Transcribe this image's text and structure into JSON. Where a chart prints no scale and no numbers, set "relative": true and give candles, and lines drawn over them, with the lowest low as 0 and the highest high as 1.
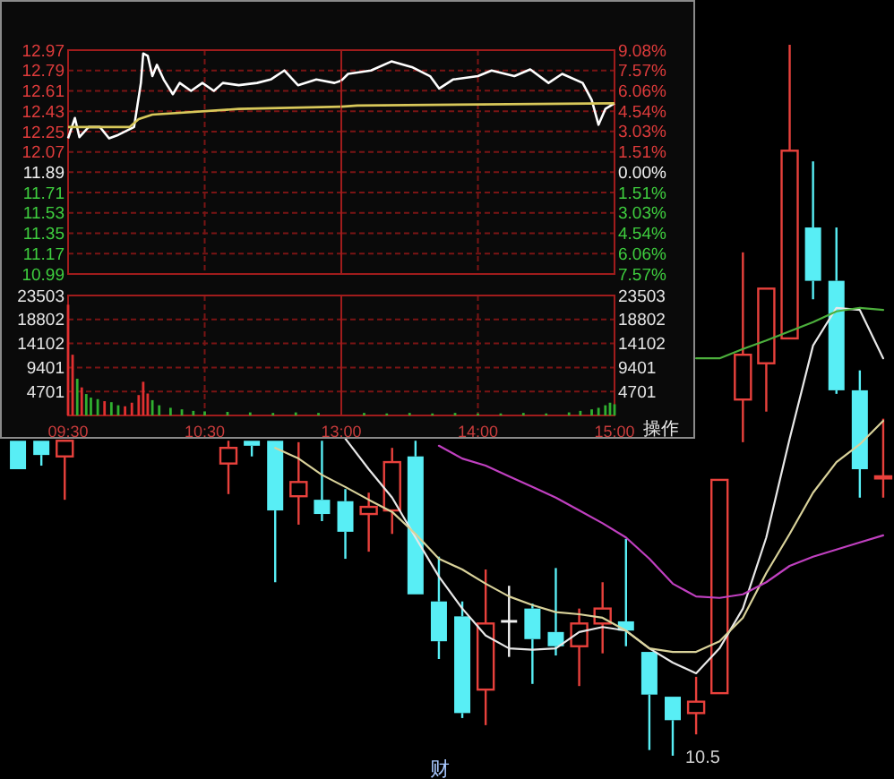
{
  "chart_data": [
    {
      "type": "candlestick",
      "relative": true,
      "categories": [
        null,
        null,
        null,
        null,
        null,
        null,
        null,
        null,
        null,
        null,
        null,
        null,
        null,
        null,
        null,
        null,
        null,
        null,
        null,
        null,
        null,
        null,
        null,
        null,
        null,
        null,
        null,
        null,
        null,
        null,
        null,
        null,
        null,
        null,
        null,
        null,
        null,
        null
      ],
      "ohlc": [
        [
          0.443,
          0.443,
          0.403,
          0.403
        ],
        [
          0.443,
          0.443,
          0.408,
          0.423
        ],
        [
          0.421,
          0.443,
          0.36,
          0.443
        ],
        null,
        null,
        null,
        null,
        null,
        null,
        [
          0.411,
          0.443,
          0.368,
          0.433
        ],
        [
          0.443,
          0.443,
          0.421,
          0.436
        ],
        [
          0.443,
          0.443,
          0.244,
          0.345
        ],
        [
          0.365,
          0.441,
          0.325,
          0.385
        ],
        [
          0.36,
          0.443,
          0.33,
          0.34
        ],
        [
          0.358,
          0.375,
          0.277,
          0.315
        ],
        [
          0.34,
          0.37,
          0.287,
          0.35
        ],
        [
          0.345,
          0.433,
          0.312,
          0.413
        ],
        [
          0.421,
          0.443,
          0.227,
          0.227
        ],
        [
          0.217,
          0.28,
          0.136,
          0.161
        ],
        [
          0.196,
          0.217,
          0.053,
          0.06
        ],
        [
          0.093,
          0.262,
          0.043,
          0.186
        ],
        [
          0.189,
          0.239,
          0.139,
          0.189
        ],
        [
          0.207,
          0.214,
          0.101,
          0.164
        ],
        [
          0.174,
          0.264,
          0.141,
          0.154
        ],
        [
          0.154,
          0.207,
          0.098,
          0.186
        ],
        [
          0.186,
          0.244,
          0.144,
          0.207
        ],
        [
          0.189,
          0.305,
          0.154,
          0.176
        ],
        [
          0.146,
          0.146,
          0.008,
          0.086
        ],
        [
          0.083,
          0.083,
          0,
          0.05
        ],
        [
          0.06,
          0.111,
          0.03,
          0.076
        ],
        [
          0.088,
          0.388,
          0.088,
          0.388
        ],
        [
          0.501,
          0.708,
          0.441,
          0.564
        ],
        [
          0.552,
          0.657,
          0.484,
          0.657
        ],
        [
          0.587,
          1,
          0.587,
          0.851
        ],
        [
          0.743,
          0.836,
          0.642,
          0.668
        ],
        [
          0.668,
          0.743,
          0.509,
          0.514
        ],
        [
          0.514,
          0.542,
          0.363,
          0.403
        ],
        [
          0.39,
          0.474,
          0.363,
          0.393
        ]
      ],
      "colors": [
        "#58eef5",
        "#58eef5",
        "#e8413c",
        null,
        null,
        null,
        null,
        null,
        null,
        "#e8413c",
        "#58eef5",
        "#58eef5",
        "#e8413c",
        "#58eef5",
        "#58eef5",
        "#e8413c",
        "#e8413c",
        "#58eef5",
        "#58eef5",
        "#58eef5",
        "#e8413c",
        "#f0f0f0",
        "#58eef5",
        "#58eef5",
        "#e8413c",
        "#e8413c",
        "#58eef5",
        "#58eef5",
        "#58eef5",
        "#e8413c",
        "#e8413c",
        "#e8413c",
        "#e8413c",
        "#e8413c",
        "#58eef5",
        "#58eef5",
        "#58eef5",
        "#e8413c"
      ],
      "series": [
        {
          "type": "line",
          "color": "#e8e8e8",
          "values": [
            null,
            null,
            null,
            null,
            null,
            null,
            null,
            null,
            null,
            null,
            null,
            null,
            null,
            null,
            0.446,
            0.403,
            0.363,
            0.307,
            0.252,
            0.207,
            0.169,
            0.151,
            0.149,
            0.151,
            0.174,
            0.181,
            0.176,
            0.151,
            0.131,
            0.116,
            0.151,
            0.207,
            0.307,
            0.446,
            0.577,
            0.63,
            0.627,
            0.559
          ]
        },
        {
          "type": "line",
          "color": "#d9d29a",
          "values": [
            null,
            null,
            null,
            null,
            null,
            null,
            null,
            null,
            null,
            null,
            null,
            0.433,
            0.418,
            0.395,
            0.378,
            0.36,
            0.343,
            0.312,
            0.277,
            0.262,
            0.242,
            0.224,
            0.212,
            0.202,
            0.199,
            0.194,
            0.176,
            0.151,
            0.146,
            0.146,
            0.161,
            0.194,
            0.257,
            0.312,
            0.37,
            0.413,
            0.438,
            0.471
          ]
        },
        {
          "type": "line",
          "color": "#c040c0",
          "values": [
            null,
            null,
            null,
            null,
            null,
            null,
            null,
            null,
            null,
            null,
            null,
            null,
            null,
            null,
            null,
            null,
            null,
            null,
            0.436,
            0.418,
            0.408,
            0.393,
            0.378,
            0.363,
            0.345,
            0.327,
            0.307,
            0.277,
            0.242,
            0.224,
            0.222,
            0.227,
            0.244,
            0.267,
            0.28,
            0.29,
            0.3,
            0.31
          ]
        },
        {
          "type": "line",
          "color": "#4caf3c",
          "values": [
            null,
            null,
            null,
            null,
            null,
            null,
            null,
            null,
            null,
            null,
            null,
            null,
            null,
            null,
            null,
            null,
            null,
            null,
            null,
            null,
            null,
            null,
            null,
            null,
            null,
            null,
            null,
            null,
            null,
            0.559,
            0.559,
            0.572,
            0.584,
            0.597,
            0.61,
            0.625,
            0.63,
            0.627
          ]
        }
      ],
      "annotations": [
        "10.5",
        "财"
      ]
    },
    {
      "type": "line",
      "tick_labels": "y",
      "grid": true,
      "xlim": [
        9.5,
        11.5
      ],
      "xticks": [
        {
          "value": 9.5,
          "label": null
        },
        {
          "value": 10.5,
          "label": null
        }
      ],
      "ylim": [
        10.99,
        12.97
      ],
      "yticks": [
        12.97,
        12.79,
        12.61,
        12.43,
        12.25,
        12.07,
        11.89,
        11.71,
        11.53,
        11.35,
        11.17,
        10.99
      ],
      "series": [
        {
          "color": "#ffffff",
          "x": [
            9.5,
            9.55,
            9.583,
            9.65,
            9.733,
            9.8,
            9.867,
            9.983,
            10.033,
            10.05,
            10.083,
            10.117,
            10.15,
            10.2,
            10.267,
            10.317,
            10.4,
            10.483,
            10.567,
            10.633,
            10.75,
            10.883,
            10.983,
            11.083,
            11.183,
            11.317,
            11.45,
            11.5
          ],
          "values": [
            12.19,
            12.37,
            12.2,
            12.29,
            12.29,
            12.19,
            12.22,
            12.29,
            12.68,
            12.94,
            12.92,
            12.74,
            12.84,
            12.71,
            12.58,
            12.68,
            12.61,
            12.68,
            12.61,
            12.68,
            12.66,
            12.68,
            12.71,
            12.79,
            12.66,
            12.71,
            12.68,
            12.7
          ]
        },
        {
          "color": "#d8c85a",
          "x": [
            9.5,
            9.95,
            10.017,
            10.117,
            10.75,
            11.5
          ],
          "values": [
            12.29,
            12.29,
            12.36,
            12.4,
            12.45,
            12.47
          ]
        }
      ]
    },
    {
      "type": "line",
      "tick_labels": "y",
      "grid": true,
      "xlim": [
        13,
        15
      ],
      "xticks": [
        {
          "value": 13,
          "label": null
        },
        {
          "value": 14,
          "label": null
        },
        {
          "value": 15,
          "label": null
        }
      ],
      "ylim": [
        10.99,
        12.97
      ],
      "y2lim": [
        -7.57,
        9.08
      ],
      "y2ticks": [
        {
          "value": 9.08,
          "label": "9.08%"
        },
        {
          "value": 7.57,
          "label": "7.57%"
        },
        {
          "value": 6.06,
          "label": "6.06%"
        },
        {
          "value": 4.54,
          "label": "4.54%"
        },
        {
          "value": 3.03,
          "label": "3.03%"
        },
        {
          "value": 1.51,
          "label": "1.51%"
        },
        {
          "value": 0,
          "label": "0.00%"
        },
        {
          "value": -1.51,
          "label": "1.51%"
        },
        {
          "value": -3.03,
          "label": "3.03%"
        },
        {
          "value": -4.54,
          "label": "4.54%"
        },
        {
          "value": -6.06,
          "label": "6.06%"
        },
        {
          "value": -7.57,
          "label": "7.57%"
        }
      ],
      "series": [
        {
          "color": "#ffffff",
          "x": [
            13,
            13.05,
            13.217,
            13.367,
            13.517,
            13.65,
            13.717,
            13.817,
            14,
            14.1,
            14.267,
            14.383,
            14.517,
            14.617,
            14.767,
            14.833,
            14.883,
            14.933,
            15
          ],
          "values": [
            12.7,
            12.76,
            12.79,
            12.87,
            12.82,
            12.74,
            12.63,
            12.71,
            12.74,
            12.79,
            12.74,
            12.8,
            12.68,
            12.76,
            12.68,
            12.53,
            12.31,
            12.45,
            12.5
          ]
        },
        {
          "color": "#d8c85a",
          "x": [
            13,
            13.117,
            15
          ],
          "values": [
            12.47,
            12.48,
            12.5
          ]
        }
      ]
    },
    {
      "type": "bar",
      "grid": true,
      "x": [
        9.5,
        9.533,
        9.567,
        9.6,
        9.633,
        9.667,
        9.717,
        9.767,
        9.817,
        9.867,
        9.917,
        9.967,
        10.017,
        10.05,
        10.083,
        10.117,
        10.167,
        10.25,
        10.333,
        10.417,
        10.5,
        10.667,
        10.833,
        11,
        11.167,
        11.333
      ],
      "values": [
        21700,
        11900,
        7200,
        5500,
        4200,
        3500,
        3200,
        2800,
        2600,
        2000,
        1800,
        2500,
        4000,
        6600,
        4300,
        3000,
        2000,
        1500,
        1200,
        900,
        800,
        700,
        600,
        500,
        600,
        500
      ],
      "colors": [
        "#e03030",
        "#e03030",
        "#30b030",
        "#e03030",
        "#30b030",
        "#30b030",
        "#30b030",
        "#e03030",
        "#30b030",
        "#30b030",
        "#e03030",
        "#e03030",
        "#e03030",
        "#e03030",
        "#e03030",
        "#30b030",
        "#30b030",
        "#30b030",
        "#30b030",
        "#30b030",
        "#30b030",
        "#30b030",
        "#30b030",
        "#30b030",
        "#30b030",
        "#30b030"
      ],
      "xlim": [
        9.5,
        11.5
      ],
      "xticks": [
        {
          "value": 9.5,
          "label": "09:30"
        },
        {
          "value": 10.5,
          "label": "10:30"
        }
      ],
      "ylim": [
        0,
        23503
      ],
      "yticks": [
        23503,
        18802,
        14102,
        9401,
        4701
      ]
    },
    {
      "type": "bar",
      "grid": true,
      "x": [
        13.167,
        13.333,
        13.5,
        13.667,
        13.833,
        14,
        14.167,
        14.333,
        14.5,
        14.667,
        14.75,
        14.833,
        14.883,
        14.933,
        14.967,
        15
      ],
      "values": [
        500,
        400,
        500,
        400,
        500,
        400,
        400,
        500,
        400,
        600,
        900,
        1200,
        1500,
        2000,
        2500,
        2200
      ],
      "colors": [
        "#30b030",
        "#30b030",
        "#30b030",
        "#30b030",
        "#30b030",
        "#30b030",
        "#30b030",
        "#30b030",
        "#30b030",
        "#30b030",
        "#30b030",
        "#30b030",
        "#30b030",
        "#30b030",
        "#30b030",
        "#30b030"
      ],
      "xlim": [
        13,
        15
      ],
      "xticks": [
        {
          "value": 13,
          "label": "13:00"
        },
        {
          "value": 14,
          "label": "14:00"
        },
        {
          "value": 15,
          "label": "15:00"
        }
      ],
      "ylim": [
        0,
        23503
      ],
      "yticks": [
        23503,
        18802,
        14102,
        9401,
        4701
      ],
      "annotations": [
        "操作"
      ]
    }
  ]
}
